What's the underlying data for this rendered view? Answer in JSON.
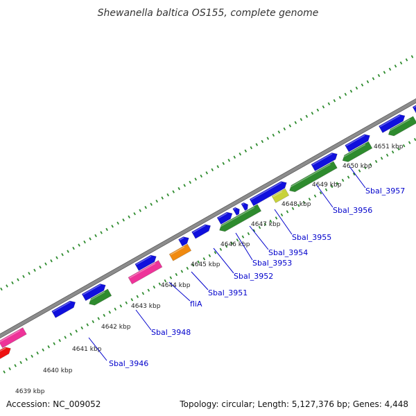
{
  "title": "Shewanella baltica OS155, complete genome",
  "footer": {
    "accession": "Accession: NC_009052",
    "summary": "Topology: circular; Length: 5,127,376 bp; Genes: 4,448"
  },
  "colors": {
    "background": "#ffffff",
    "backbone": "#8c8c8c",
    "forward_cds": "#1010dd",
    "reverse_cds": "#2e8b2e",
    "red_gene": "#ee1111",
    "magenta_gene": "#ee3399",
    "orange_gene": "#f08a10",
    "yellow_gene": "#c8d23a",
    "tick_dots": "#2e8b2e",
    "label_text": "#0000cc"
  },
  "kbp_ticks": [
    {
      "label": "4639 kbp"
    },
    {
      "label": "4640 kbp"
    },
    {
      "label": "4641 kbp"
    },
    {
      "label": "4642 kbp"
    },
    {
      "label": "4643 kbp"
    },
    {
      "label": "4644 kbp"
    },
    {
      "label": "4645 kbp"
    },
    {
      "label": "4646 kbp"
    },
    {
      "label": "4647 kbp"
    },
    {
      "label": "4648 kbp"
    },
    {
      "label": "4649 kbp"
    },
    {
      "label": "4650 kbp"
    },
    {
      "label": "4651 kbp"
    }
  ],
  "gene_labels": [
    {
      "name": "Sbal_3946"
    },
    {
      "name": "Sbal_3948"
    },
    {
      "name": "fliA"
    },
    {
      "name": "Sbal_3951"
    },
    {
      "name": "Sbal_3952"
    },
    {
      "name": "Sbal_3953"
    },
    {
      "name": "Sbal_3954"
    },
    {
      "name": "Sbal_3955"
    },
    {
      "name": "Sbal_3956"
    },
    {
      "name": "Sbal_3957"
    }
  ]
}
